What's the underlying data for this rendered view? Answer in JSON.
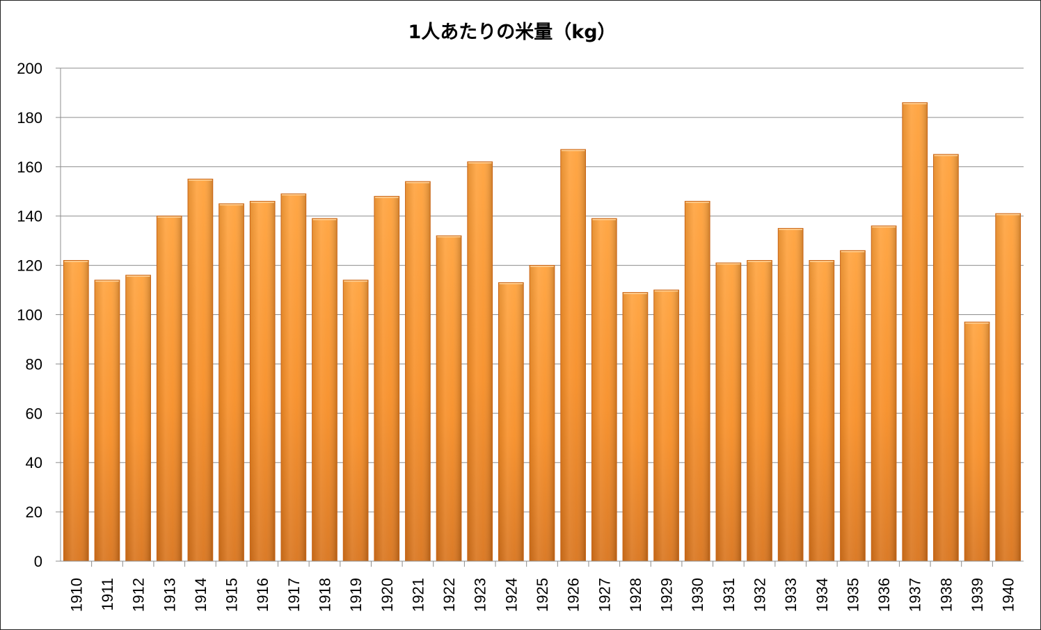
{
  "chart_data": {
    "type": "bar",
    "title": "1人あたりの米量（kg）",
    "xlabel": "",
    "ylabel": "",
    "ylim": [
      0,
      200
    ],
    "yticks": [
      0,
      20,
      40,
      60,
      80,
      100,
      120,
      140,
      160,
      180,
      200
    ],
    "grid": true,
    "legend": "none",
    "categories": [
      "1910",
      "1911",
      "1912",
      "1913",
      "1914",
      "1915",
      "1916",
      "1917",
      "1918",
      "1919",
      "1920",
      "1921",
      "1922",
      "1923",
      "1924",
      "1925",
      "1926",
      "1927",
      "1928",
      "1929",
      "1930",
      "1931",
      "1932",
      "1933",
      "1934",
      "1935",
      "1936",
      "1937",
      "1938",
      "1939",
      "1940"
    ],
    "values": [
      122,
      114,
      116,
      140,
      155,
      145,
      146,
      149,
      139,
      114,
      148,
      154,
      132,
      162,
      113,
      120,
      167,
      139,
      109,
      110,
      146,
      121,
      122,
      135,
      122,
      126,
      136,
      186,
      165,
      97,
      141
    ]
  },
  "colors": {
    "bar_light": "#ffa23c",
    "bar_mid": "#f78e26",
    "bar_dark": "#c96415",
    "grid": "#8c8c8c",
    "axis": "#8c8c8c"
  }
}
